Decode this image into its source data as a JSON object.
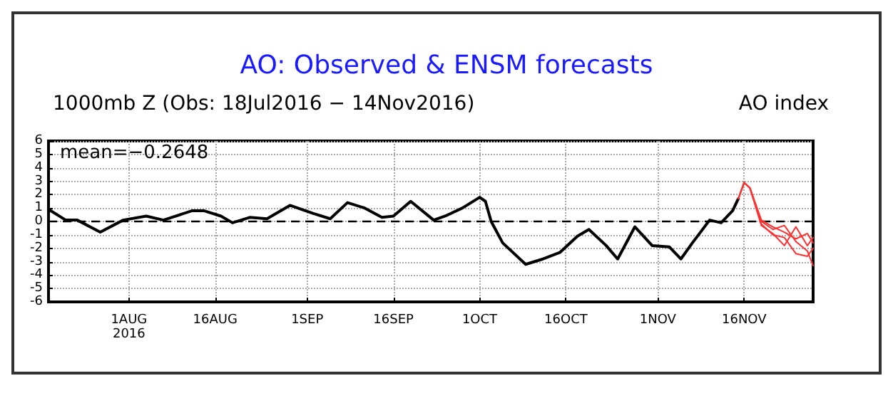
{
  "chart_data": {
    "type": "line",
    "title": "AO: Observed & ENSM forecasts",
    "subtitle": "1000mb Z (Obs: 18Jul2016 − 14Nov2016)",
    "ylabel": "AO index",
    "annotations": [
      "mean=−0.2648"
    ],
    "xlim": [
      "2016-07-18",
      "2016-11-28"
    ],
    "xticks": [
      {
        "value": "2016-08-01",
        "label": "1AUG\n2016"
      },
      {
        "value": "2016-08-16",
        "label": "16AUG"
      },
      {
        "value": "2016-09-01",
        "label": "1SEP"
      },
      {
        "value": "2016-09-16",
        "label": "16SEP"
      },
      {
        "value": "2016-10-01",
        "label": "1OCT"
      },
      {
        "value": "2016-10-16",
        "label": "16OCT"
      },
      {
        "value": "2016-11-01",
        "label": "1NOV"
      },
      {
        "value": "2016-11-16",
        "label": "16NOV"
      }
    ],
    "ylim": [
      -6,
      6
    ],
    "yticks": [
      -6,
      -5,
      -4,
      -3,
      -2,
      -1,
      0,
      1,
      2,
      3,
      4,
      5,
      6
    ],
    "grid": true,
    "marker": "none",
    "line_style": "solid",
    "ref_lines": [
      {
        "axis": "y",
        "value": 0,
        "color": "#000000",
        "line_style": "dashed"
      }
    ],
    "series": [
      {
        "color": "#000000",
        "x": [
          "2016-07-18",
          "2016-07-21",
          "2016-07-23",
          "2016-07-27",
          "2016-07-31",
          "2016-08-04",
          "2016-08-07",
          "2016-08-12",
          "2016-08-14",
          "2016-08-17",
          "2016-08-19",
          "2016-08-22",
          "2016-08-25",
          "2016-08-29",
          "2016-09-02",
          "2016-09-05",
          "2016-09-08",
          "2016-09-11",
          "2016-09-14",
          "2016-09-16",
          "2016-09-19",
          "2016-09-23",
          "2016-09-25",
          "2016-09-28",
          "2016-10-01",
          "2016-10-02",
          "2016-10-03",
          "2016-10-05",
          "2016-10-09",
          "2016-10-12",
          "2016-10-15",
          "2016-10-18",
          "2016-10-20",
          "2016-10-23",
          "2016-10-25",
          "2016-10-28",
          "2016-10-31",
          "2016-11-03",
          "2016-11-05",
          "2016-11-07",
          "2016-11-10",
          "2016-11-12",
          "2016-11-14",
          "2016-11-15"
        ],
        "values": [
          0.9,
          0.1,
          0.1,
          -0.8,
          0.1,
          0.4,
          0.1,
          0.8,
          0.8,
          0.4,
          -0.1,
          0.3,
          0.2,
          1.2,
          0.6,
          0.2,
          1.4,
          1.0,
          0.3,
          0.4,
          1.5,
          0.1,
          0.4,
          1.0,
          1.8,
          1.5,
          0,
          -1.6,
          -3.2,
          -2.8,
          -2.3,
          -1.1,
          -0.6,
          -1.8,
          -2.8,
          -0.4,
          -1.8,
          -1.9,
          -2.8,
          -1.6,
          0.1,
          -0.1,
          0.8,
          1.7
        ]
      },
      {
        "color": "#ff3030",
        "x": [
          "2016-11-15",
          "2016-11-16",
          "2016-11-17",
          "2016-11-19",
          "2016-11-21",
          "2016-11-23",
          "2016-11-25",
          "2016-11-27",
          "2016-11-28"
        ],
        "values": [
          1.7,
          2.9,
          2.5,
          0,
          -0.6,
          -0.3,
          -1.5,
          -2.2,
          -3.3
        ]
      },
      {
        "color": "#ff3030",
        "x": [
          "2016-11-15",
          "2016-11-16",
          "2016-11-17",
          "2016-11-19",
          "2016-11-21",
          "2016-11-23",
          "2016-11-25",
          "2016-11-27",
          "2016-11-28"
        ],
        "values": [
          1.7,
          2.9,
          2.5,
          -0.3,
          -0.9,
          -1.8,
          -0.4,
          -1.8,
          -1.2
        ]
      },
      {
        "color": "#ff3030",
        "x": [
          "2016-11-15",
          "2016-11-16",
          "2016-11-17",
          "2016-11-19",
          "2016-11-21",
          "2016-11-23",
          "2016-11-25",
          "2016-11-27",
          "2016-11-28"
        ],
        "values": [
          1.7,
          2.9,
          2.5,
          -0.2,
          -1.0,
          -1.2,
          -2.4,
          -2.6,
          -2.0
        ]
      },
      {
        "color": "#ff3030",
        "x": [
          "2016-11-15",
          "2016-11-16",
          "2016-11-17",
          "2016-11-19",
          "2016-11-21",
          "2016-11-23",
          "2016-11-25",
          "2016-11-27",
          "2016-11-28"
        ],
        "values": [
          1.7,
          2.9,
          2.5,
          0.1,
          -0.4,
          -0.8,
          -1.3,
          -0.9,
          -1.6
        ]
      }
    ]
  }
}
